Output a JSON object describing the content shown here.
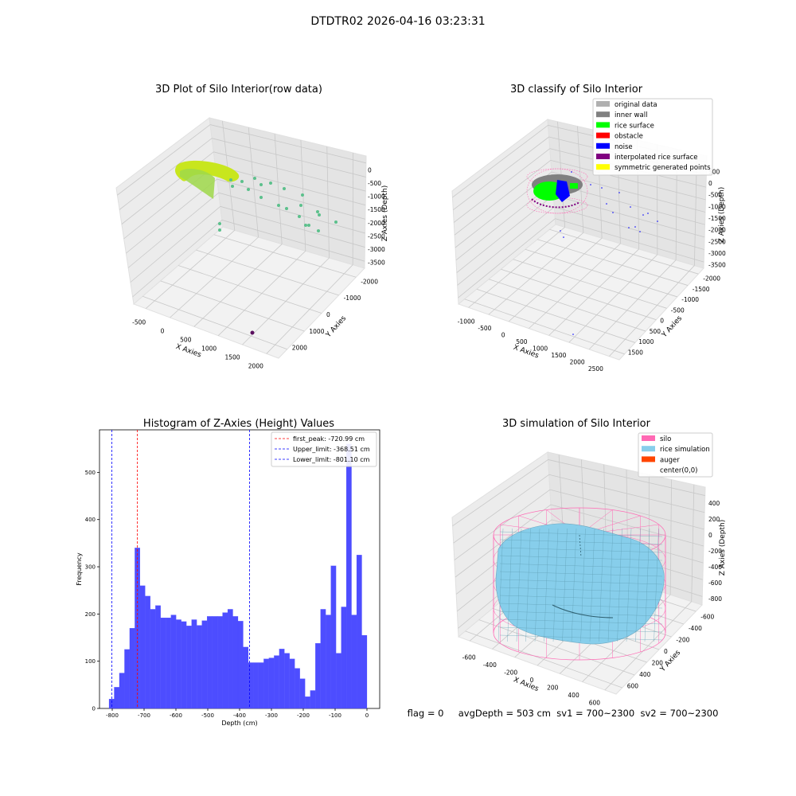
{
  "figure": {
    "suptitle": "DTDTR02 2026-04-16 03:23:31",
    "status": "flag = 0     avgDepth = 503 cm  sv1 = 700~2300  sv2 = 700~2300"
  },
  "chart_data": [
    {
      "type": "scatter",
      "title": "3D Plot of Silo Interior(row data)",
      "xlabel": "X Axies",
      "ylabel": "Y Axies",
      "zlabel": "Z Axies (Depth)",
      "x_ticks": [
        "-500",
        "0",
        "500",
        "1000",
        "1500",
        "2000"
      ],
      "y_ticks": [
        "-2000",
        "-1000",
        "0",
        "1000",
        "2000"
      ],
      "z_ticks": [
        "0",
        "-500",
        "-1000",
        "-1500",
        "-2000",
        "-2500",
        "-3000",
        "-3500"
      ],
      "colors": {
        "ring": "#c8e61e",
        "inner": "#9fd84a",
        "sparse": "#5cc08c",
        "outlier": "#5a0f5e"
      }
    },
    {
      "type": "scatter",
      "title": "3D classify of Silo Interior",
      "xlabel": "X Axies",
      "ylabel": "Y Axies",
      "zlabel": "Z Axies (Depth)",
      "x_ticks": [
        "-1000",
        "-500",
        "0",
        "500",
        "1000",
        "1500",
        "2000",
        "2500"
      ],
      "y_ticks": [
        "-2000",
        "-1500",
        "-1000",
        "-500",
        "0",
        "500",
        "1000",
        "1500"
      ],
      "z_ticks": [
        "500",
        "0",
        "-500",
        "-1000",
        "-1500",
        "-2000",
        "-2500",
        "-3000",
        "-3500"
      ],
      "legend": [
        {
          "label": "original data",
          "color": "#b0b0b0"
        },
        {
          "label": "inner wall",
          "color": "#808080"
        },
        {
          "label": "rice surface",
          "color": "#00ff00"
        },
        {
          "label": "obstacle",
          "color": "#ff0000"
        },
        {
          "label": "noise",
          "color": "#0000ff"
        },
        {
          "label": "interpolated rice surface",
          "color": "#800080"
        },
        {
          "label": "symmetric generated points",
          "color": "#ffff00"
        }
      ]
    },
    {
      "type": "bar",
      "title": "Histogram of Z-Axies (Height) Values",
      "xlabel": "Depth (cm)",
      "ylabel": "Frequency",
      "xlim": [
        -840,
        40
      ],
      "ylim": [
        0,
        590
      ],
      "bar_color": "#4d4dff",
      "bin_edges_start": -810,
      "bin_width": 16.2,
      "values": [
        20,
        45,
        75,
        125,
        170,
        340,
        260,
        238,
        210,
        218,
        192,
        192,
        198,
        188,
        184,
        175,
        188,
        176,
        186,
        195,
        195,
        195,
        203,
        210,
        195,
        185,
        130,
        97,
        97,
        97,
        105,
        107,
        112,
        126,
        117,
        105,
        85,
        63,
        25,
        38,
        138,
        210,
        198,
        302,
        117,
        215,
        560,
        198,
        325,
        155
      ],
      "x_ticks": [
        "-800",
        "-700",
        "-600",
        "-500",
        "-400",
        "-300",
        "-200",
        "-100",
        "0"
      ],
      "y_ticks": [
        "0",
        "100",
        "200",
        "300",
        "400",
        "500"
      ],
      "vlines": [
        {
          "label": "first_peak: -720.99 cm",
          "x": -720.99,
          "color": "#ff0000"
        },
        {
          "label": "Upper_limit: -368.51 cm",
          "x": -368.51,
          "color": "#0000ff"
        },
        {
          "label": "Lower_limit: -801.10 cm",
          "x": -801.1,
          "color": "#0000ff"
        }
      ]
    },
    {
      "type": "surface",
      "title": "3D simulation of Silo Interior",
      "xlabel": "X Axies",
      "ylabel": "Y Axies",
      "zlabel": "Z Axies (Depth)",
      "x_ticks": [
        "-600",
        "-400",
        "-200",
        "0",
        "200",
        "400",
        "600"
      ],
      "y_ticks": [
        "-600",
        "-400",
        "-200",
        "0",
        "200",
        "400",
        "600"
      ],
      "z_ticks": [
        "400",
        "200",
        "0",
        "-200",
        "-400",
        "-600",
        "-800"
      ],
      "legend": [
        {
          "label": "silo",
          "color": "#ff69b4"
        },
        {
          "label": "rice simulation",
          "color": "#87ceeb"
        },
        {
          "label": "auger",
          "color": "#ff4500"
        },
        {
          "label": "center(0,0)",
          "color": "#ffffff"
        }
      ]
    }
  ]
}
